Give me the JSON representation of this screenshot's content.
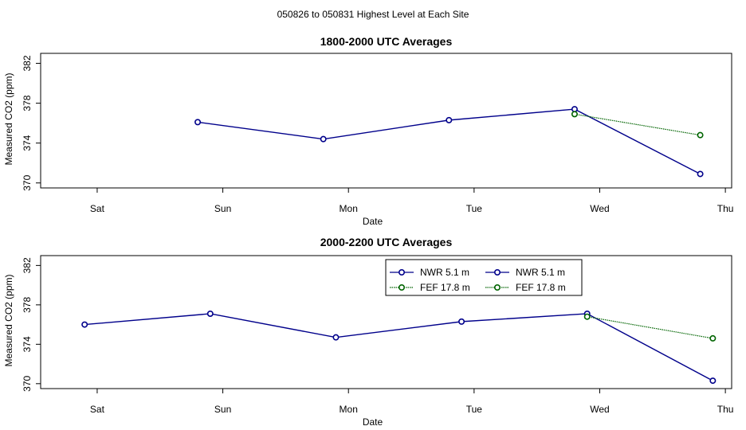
{
  "figure": {
    "suptitle": "050826  to  050831 Highest Level at Each Site"
  },
  "chart_data": [
    {
      "type": "line",
      "title": "1800-2000 UTC Averages",
      "xlabel": "Date",
      "ylabel": "Measured CO2 (ppm)",
      "x_ticks": [
        "Sat",
        "Sun",
        "Mon",
        "Tue",
        "Wed",
        "Thu"
      ],
      "x_tick_values": [
        1,
        2,
        3,
        4,
        5,
        6
      ],
      "xlim": [
        0.55,
        6.05
      ],
      "ylim": [
        369.5,
        383.0
      ],
      "y_ticks": [
        370,
        374,
        378,
        382
      ],
      "y_tick_labels": [
        "370",
        "374",
        "378",
        "382"
      ],
      "legend": null,
      "series": [
        {
          "name": "NWR  5.1 m",
          "color": "#00008b",
          "x": [
            1.8,
            2.8,
            3.8,
            4.8,
            5.8
          ],
          "y": [
            376.1,
            374.4,
            376.3,
            377.4,
            370.9
          ]
        },
        {
          "name": "FEF  17.8 m",
          "color": "#006400",
          "x": [
            4.8,
            5.8
          ],
          "y": [
            376.9,
            374.8
          ]
        }
      ]
    },
    {
      "type": "line",
      "title": "2000-2200 UTC Averages",
      "xlabel": "Date",
      "ylabel": "Measured CO2 (ppm)",
      "x_ticks": [
        "Sat",
        "Sun",
        "Mon",
        "Tue",
        "Wed",
        "Thu"
      ],
      "x_tick_values": [
        1,
        2,
        3,
        4,
        5,
        6
      ],
      "xlim": [
        0.55,
        6.05
      ],
      "ylim": [
        369.5,
        383.0
      ],
      "y_ticks": [
        370,
        374,
        378,
        382
      ],
      "y_tick_labels": [
        "370",
        "374",
        "378",
        "382"
      ],
      "legend": {
        "placement": "top-center",
        "entries": [
          {
            "label": "NWR   5.1 m",
            "color": "#00008b"
          },
          {
            "label": "NWR   5.1 m",
            "color": "#00008b"
          },
          {
            "label": "FEF   17.8 m",
            "color": "#006400"
          },
          {
            "label": "FEF   17.8 m",
            "color": "#006400"
          }
        ]
      },
      "series": [
        {
          "name": "NWR  5.1 m",
          "color": "#00008b",
          "x": [
            0.9,
            1.9,
            2.9,
            3.9,
            4.9,
            5.9
          ],
          "y": [
            376.0,
            377.1,
            374.7,
            376.3,
            377.1,
            370.3
          ]
        },
        {
          "name": "FEF  17.8 m",
          "color": "#006400",
          "x": [
            4.9,
            5.9
          ],
          "y": [
            376.8,
            374.6
          ]
        }
      ]
    }
  ]
}
